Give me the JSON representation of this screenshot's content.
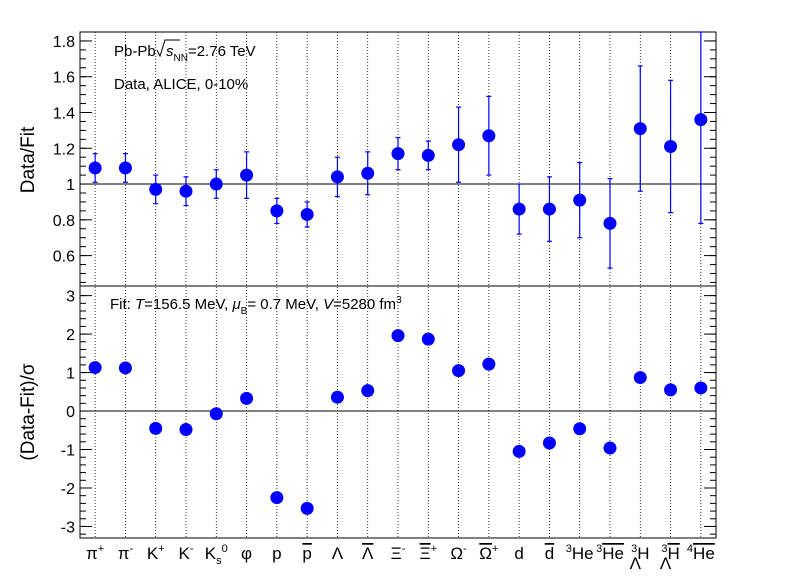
{
  "chart_data": [
    {
      "type": "scatter",
      "panel": "top",
      "ylabel": "Data/Fit",
      "ylim": [
        0.43,
        1.85
      ],
      "yticks": [
        0.6,
        0.8,
        1,
        1.2,
        1.4,
        1.6,
        1.8
      ],
      "reference_line": 1,
      "grid": "vertical dotted lines at each category",
      "annotations": [
        "Pb-Pb √s_NN=2.76 TeV",
        "Data, ALICE, 0-10%"
      ],
      "categories": [
        "π⁺",
        "π⁻",
        "K⁺",
        "K⁻",
        "K⁰s",
        "φ",
        "p",
        "p̄",
        "Λ",
        "Λ̄",
        "Ξ⁻",
        "Ξ̄⁺",
        "Ω⁻",
        "Ω̄⁺",
        "d",
        "d̄",
        "³He",
        "³He̅",
        "³ΛH",
        "³ΛH̄",
        "⁴He̅"
      ],
      "values": [
        1.09,
        1.09,
        0.97,
        0.96,
        1.0,
        1.05,
        0.85,
        0.83,
        1.04,
        1.06,
        1.17,
        1.16,
        1.22,
        1.27,
        0.86,
        0.86,
        0.91,
        0.78,
        1.31,
        1.21,
        1.36
      ],
      "err_low": [
        0.08,
        0.08,
        0.08,
        0.08,
        0.08,
        0.13,
        0.07,
        0.07,
        0.11,
        0.12,
        0.09,
        0.08,
        0.21,
        0.22,
        0.14,
        0.18,
        0.21,
        0.25,
        0.35,
        0.37,
        0.58
      ],
      "err_high": [
        0.08,
        0.08,
        0.08,
        0.08,
        0.08,
        0.13,
        0.07,
        0.07,
        0.11,
        0.12,
        0.09,
        0.08,
        0.21,
        0.22,
        0.14,
        0.18,
        0.21,
        0.25,
        0.35,
        0.37,
        0.49
      ],
      "marker_color": "#0000ff"
    },
    {
      "type": "scatter",
      "panel": "bottom",
      "ylabel": "(Data-Fit)/σ",
      "ylim": [
        -3.3,
        3.25
      ],
      "yticks": [
        -3,
        -2,
        -1,
        0,
        1,
        2,
        3
      ],
      "reference_line": 0,
      "annotation": "Fit: T=156.5 MeV, μB= 0.7 MeV, V=5280 fm³",
      "values": [
        1.13,
        1.12,
        -0.45,
        -0.48,
        -0.07,
        0.33,
        -2.25,
        -2.53,
        0.36,
        0.53,
        1.96,
        1.87,
        1.05,
        1.22,
        -1.05,
        -0.83,
        -0.46,
        -0.96,
        0.87,
        0.55,
        0.6
      ],
      "marker_color": "#0000ff"
    }
  ],
  "colors": {
    "marker": "#0000ff",
    "axis": "#000000"
  }
}
